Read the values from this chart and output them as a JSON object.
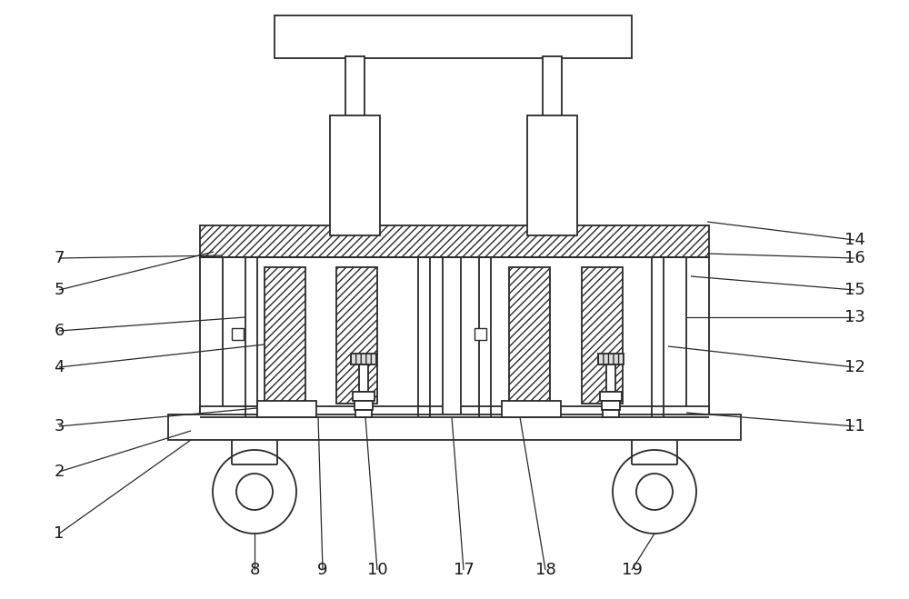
{
  "bg_color": "#ffffff",
  "line_color": "#2a2a2a",
  "lw": 1.3,
  "fig_width": 10.0,
  "fig_height": 6.59,
  "leader_lw": 0.9,
  "label_fs": 13
}
